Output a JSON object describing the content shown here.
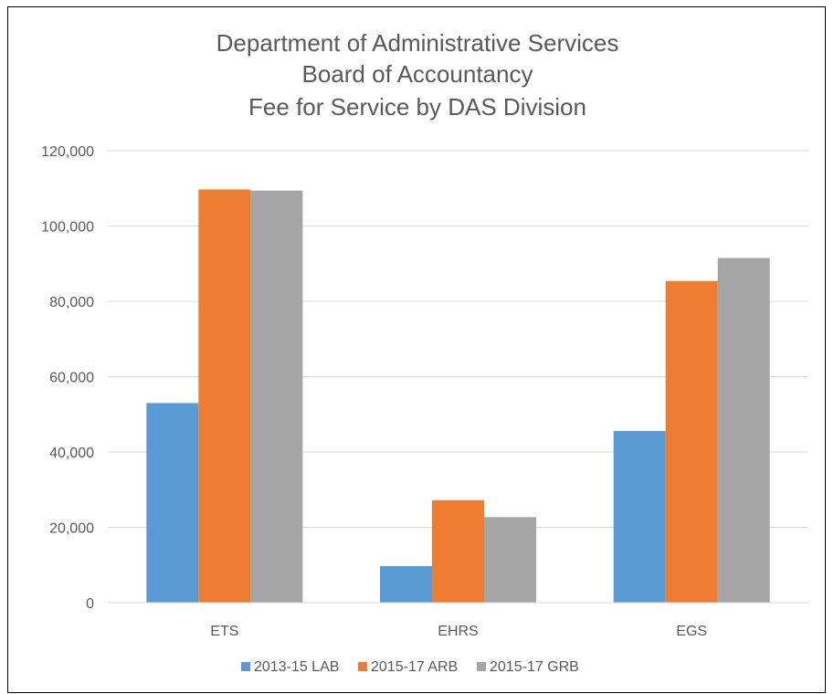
{
  "chart_data": {
    "type": "bar",
    "title": [
      "Department of Administrative Services",
      "Board of Accountancy",
      "Fee for Service by DAS Division"
    ],
    "categories": [
      "ETS",
      "EHRS",
      "EGS"
    ],
    "series": [
      {
        "name": "2013-15 LAB",
        "values": [
          53000,
          9700,
          45600
        ],
        "color": "#5b9bd5"
      },
      {
        "name": "2015-17 ARB",
        "values": [
          109700,
          27200,
          85400
        ],
        "color": "#ed7d31"
      },
      {
        "name": "2015-17 GRB",
        "values": [
          109400,
          22700,
          91500
        ],
        "color": "#a5a5a5"
      }
    ],
    "ylim": [
      0,
      120000
    ],
    "yticks": [
      0,
      20000,
      40000,
      60000,
      80000,
      100000,
      120000
    ],
    "ytick_labels": [
      "0",
      "20,000",
      "40,000",
      "60,000",
      "80,000",
      "100,000",
      "120,000"
    ],
    "grid": true,
    "legend_position": "bottom"
  }
}
